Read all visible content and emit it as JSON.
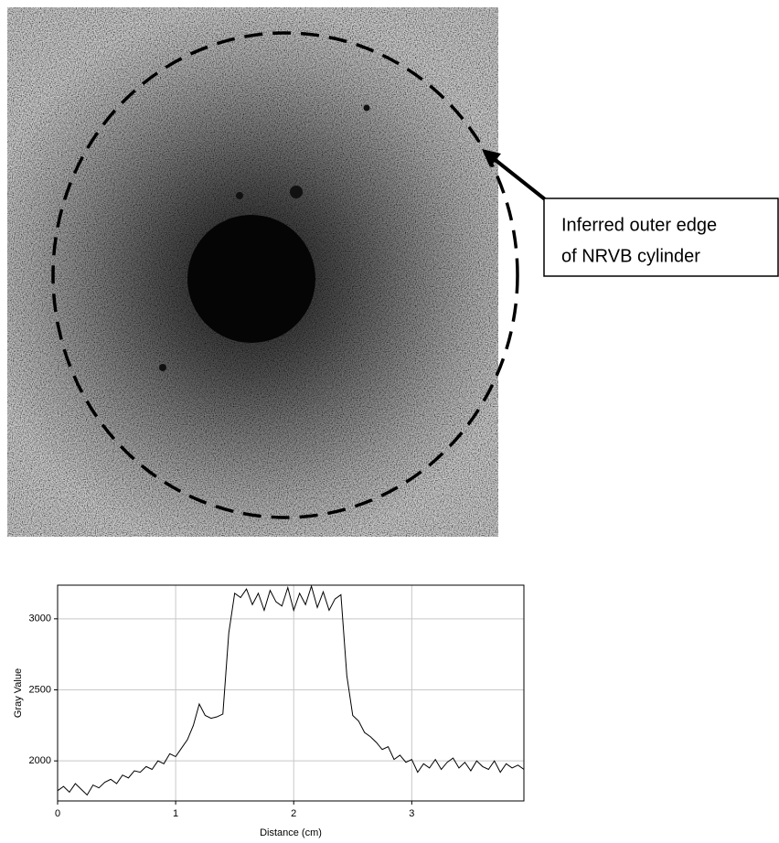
{
  "image_annotation": {
    "lines": [
      "Inferred outer edge",
      "of NRVB cylinder"
    ]
  },
  "chart_data": {
    "type": "line",
    "x_label": "Distance (cm)",
    "y_label": "Gray Value",
    "x": [
      0,
      0.05,
      0.1,
      0.15,
      0.2,
      0.25,
      0.3,
      0.35,
      0.4,
      0.45,
      0.5,
      0.55,
      0.6,
      0.65,
      0.7,
      0.75,
      0.8,
      0.85,
      0.9,
      0.95,
      1.0,
      1.05,
      1.1,
      1.15,
      1.2,
      1.25,
      1.3,
      1.35,
      1.4,
      1.45,
      1.5,
      1.55,
      1.6,
      1.65,
      1.7,
      1.75,
      1.8,
      1.85,
      1.9,
      1.95,
      2.0,
      2.05,
      2.1,
      2.15,
      2.2,
      2.25,
      2.3,
      2.35,
      2.4,
      2.45,
      2.5,
      2.55,
      2.6,
      2.65,
      2.7,
      2.75,
      2.8,
      2.85,
      2.9,
      2.95,
      3.0,
      3.05,
      3.1,
      3.15,
      3.2,
      3.25,
      3.3,
      3.35,
      3.4,
      3.45,
      3.5,
      3.55,
      3.6,
      3.65,
      3.7,
      3.75,
      3.8,
      3.85,
      3.9,
      3.95
    ],
    "values": [
      1790,
      1820,
      1780,
      1840,
      1800,
      1760,
      1830,
      1810,
      1850,
      1870,
      1840,
      1900,
      1880,
      1930,
      1920,
      1960,
      1940,
      2000,
      1980,
      2050,
      2030,
      2090,
      2150,
      2250,
      2400,
      2320,
      2300,
      2310,
      2330,
      2900,
      3180,
      3150,
      3210,
      3100,
      3180,
      3060,
      3200,
      3120,
      3090,
      3220,
      3060,
      3180,
      3100,
      3230,
      3080,
      3190,
      3060,
      3140,
      3170,
      2600,
      2320,
      2280,
      2200,
      2170,
      2130,
      2080,
      2100,
      2010,
      2040,
      1990,
      2010,
      1920,
      1980,
      1950,
      2010,
      1940,
      1990,
      2020,
      1950,
      1990,
      1930,
      2000,
      1960,
      1940,
      2000,
      1920,
      1980,
      1950,
      1970,
      1940
    ],
    "color": "#000000",
    "xlim": [
      0,
      3.95
    ],
    "xticks": [
      0,
      1,
      2,
      3
    ],
    "ylim": [
      1718,
      3237
    ],
    "yticks": [
      2000,
      2500,
      3000
    ],
    "grid": true
  }
}
